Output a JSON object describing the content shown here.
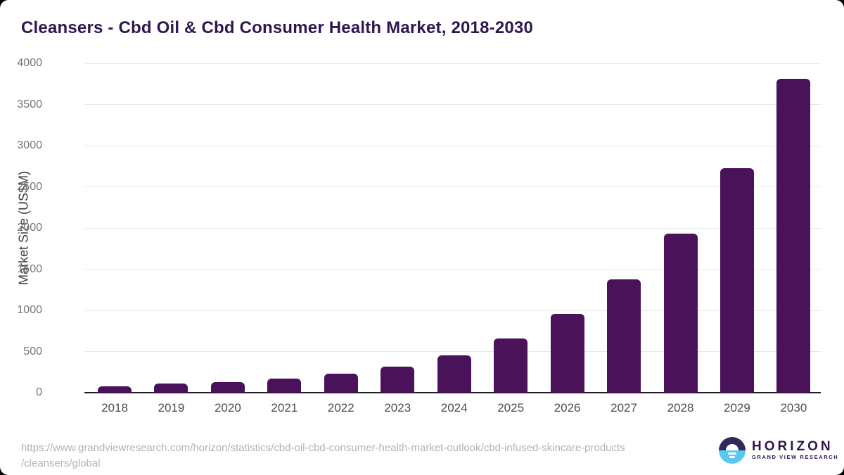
{
  "title": "Cleansers - Cbd Oil & Cbd Consumer Health Market, 2018-2030",
  "chart_data": {
    "type": "bar",
    "title": "Cleansers - Cbd Oil & Cbd Consumer Health Market, 2018-2030",
    "categories": [
      "2018",
      "2019",
      "2020",
      "2021",
      "2022",
      "2023",
      "2024",
      "2025",
      "2026",
      "2027",
      "2028",
      "2029",
      "2030"
    ],
    "values": [
      80,
      115,
      130,
      175,
      230,
      320,
      450,
      655,
      955,
      1380,
      1930,
      2730,
      3815
    ],
    "xlabel": "",
    "ylabel": "Market Size (US$M)",
    "ylim": [
      0,
      4000
    ],
    "yticks": [
      0,
      500,
      1000,
      1500,
      2000,
      2500,
      3000,
      3500,
      4000
    ],
    "grid": true,
    "legend": "none",
    "bar_color": "#4a1259"
  },
  "footer": {
    "source_url_line1": "https://www.grandviewresearch.com/horizon/statistics/cbd-oil-cbd-consumer-health-market-outlook/cbd-infused-skincare-products",
    "source_url_line2": "/cleansers/global",
    "logo": {
      "name": "HORIZON",
      "subtitle": "GRAND VIEW RESEARCH"
    }
  },
  "colors": {
    "bar": "#4a1259",
    "title_text": "#2e1751",
    "tick_text": "#757575",
    "xtick_text": "#4d4d4d",
    "gridline": "#e8e8e8",
    "axis_line": "#1f1f1f",
    "source_text": "#b3b3b3",
    "logo_purple": "#34275a",
    "logo_blue": "#5bc8f2"
  }
}
